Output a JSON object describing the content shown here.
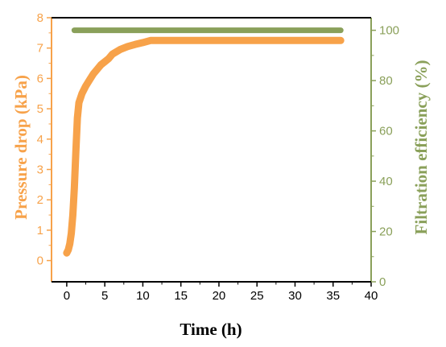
{
  "chart_data": {
    "type": "line",
    "xlabel": "Time (h)",
    "ylabel_left": "Pressure drop (kPa)",
    "ylabel_right": "Filtration efficiency (%)",
    "xlim": [
      -2,
      40
    ],
    "ylim_left": [
      -0.7,
      8
    ],
    "ylim_right": [
      0,
      105
    ],
    "x_ticks": [
      0,
      5,
      10,
      15,
      20,
      25,
      30,
      35,
      40
    ],
    "y_ticks_left": [
      0,
      1,
      2,
      3,
      4,
      5,
      6,
      7,
      8
    ],
    "y_ticks_right": [
      0,
      20,
      40,
      60,
      80,
      100
    ],
    "colors": {
      "left": "#f7a24a",
      "right": "#8aa05a",
      "axis_text": "#000000"
    },
    "series": [
      {
        "axis": "left",
        "x": [
          0,
          0.2,
          0.4,
          0.6,
          0.8,
          1.0,
          1.2,
          1.4,
          1.6,
          1.8,
          2.0,
          2.5,
          3,
          3.5,
          4,
          4.5,
          5,
          5.5,
          6,
          7,
          8,
          9,
          10,
          11,
          12,
          14,
          16,
          18,
          20,
          22,
          24,
          26,
          28,
          30,
          32,
          34,
          36
        ],
        "y": [
          0.25,
          0.35,
          0.55,
          0.9,
          1.5,
          2.4,
          3.6,
          4.7,
          5.2,
          5.35,
          5.5,
          5.75,
          5.95,
          6.15,
          6.3,
          6.45,
          6.55,
          6.65,
          6.8,
          6.95,
          7.05,
          7.12,
          7.18,
          7.25,
          7.25,
          7.25,
          7.25,
          7.25,
          7.25,
          7.25,
          7.25,
          7.25,
          7.25,
          7.25,
          7.25,
          7.25,
          7.25
        ]
      },
      {
        "axis": "right",
        "x": [
          1,
          36
        ],
        "y": [
          100,
          100
        ]
      }
    ]
  }
}
